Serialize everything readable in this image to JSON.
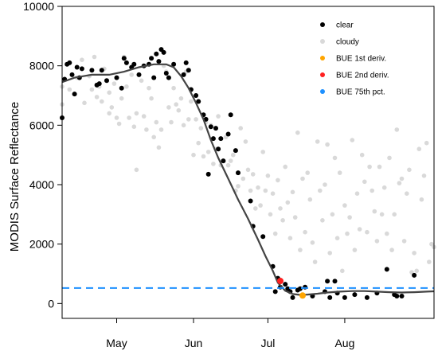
{
  "chart_data": {
    "type": "scatter",
    "ylabel": "MODIS Surface Reflectance",
    "xlabel": "",
    "xlim": [
      113,
      263
    ],
    "ylim": [
      -500,
      10000
    ],
    "yticks": [
      0,
      2000,
      4000,
      6000,
      8000,
      10000
    ],
    "xticks": [
      {
        "label": "May",
        "day": 135
      },
      {
        "label": "Jun",
        "day": 166
      },
      {
        "label": "Jul",
        "day": 196
      },
      {
        "label": "Aug",
        "day": 227
      }
    ],
    "legend": {
      "position": "top-right",
      "entries": [
        {
          "label": "clear",
          "color": "#000000"
        },
        {
          "label": "cloudy",
          "color": "#d9d9d9"
        },
        {
          "label": "BUE 1st deriv.",
          "color": "#ffa500"
        },
        {
          "label": "BUE 2nd deriv.",
          "color": "#ff2020"
        },
        {
          "label": "BUE 75th pct.",
          "color": "#1e90ff"
        }
      ]
    },
    "series": [
      {
        "name": "clear",
        "color": "#000000",
        "points": [
          [
            113,
            6250
          ],
          [
            114,
            7550
          ],
          [
            115,
            8050
          ],
          [
            116,
            8100
          ],
          [
            117,
            7700
          ],
          [
            118,
            7050
          ],
          [
            119,
            7950
          ],
          [
            120,
            7600
          ],
          [
            121,
            7900
          ],
          [
            125,
            7850
          ],
          [
            127,
            7350
          ],
          [
            128,
            7400
          ],
          [
            129,
            7850
          ],
          [
            131,
            7500
          ],
          [
            135,
            7600
          ],
          [
            137,
            7250
          ],
          [
            138,
            8250
          ],
          [
            139,
            8100
          ],
          [
            141,
            7950
          ],
          [
            142,
            8050
          ],
          [
            144,
            7700
          ],
          [
            146,
            8000
          ],
          [
            148,
            8050
          ],
          [
            149,
            8250
          ],
          [
            150,
            7600
          ],
          [
            151,
            8400
          ],
          [
            152,
            8150
          ],
          [
            153,
            8550
          ],
          [
            154,
            8450
          ],
          [
            155,
            7750
          ],
          [
            156,
            7600
          ],
          [
            158,
            8050
          ],
          [
            162,
            7700
          ],
          [
            163,
            8100
          ],
          [
            164,
            7850
          ],
          [
            165,
            7200
          ],
          [
            167,
            7000
          ],
          [
            168,
            6800
          ],
          [
            170,
            6350
          ],
          [
            171,
            6200
          ],
          [
            172,
            4350
          ],
          [
            173,
            5950
          ],
          [
            174,
            5550
          ],
          [
            175,
            5900
          ],
          [
            176,
            5200
          ],
          [
            177,
            5550
          ],
          [
            178,
            4800
          ],
          [
            180,
            5700
          ],
          [
            181,
            6350
          ],
          [
            183,
            5150
          ],
          [
            184,
            4400
          ],
          [
            189,
            3450
          ],
          [
            190,
            2600
          ],
          [
            194,
            2250
          ],
          [
            198,
            1250
          ],
          [
            199,
            400
          ],
          [
            200,
            850
          ],
          [
            201,
            550
          ],
          [
            203,
            650
          ],
          [
            204,
            500
          ],
          [
            205,
            400
          ],
          [
            206,
            200
          ],
          [
            208,
            450
          ],
          [
            209,
            500
          ],
          [
            211,
            550
          ],
          [
            214,
            250
          ],
          [
            219,
            400
          ],
          [
            220,
            750
          ],
          [
            221,
            200
          ],
          [
            223,
            750
          ],
          [
            224,
            350
          ],
          [
            227,
            200
          ],
          [
            231,
            300
          ],
          [
            236,
            200
          ],
          [
            240,
            350
          ],
          [
            244,
            1150
          ],
          [
            247,
            300
          ],
          [
            248,
            250
          ],
          [
            250,
            250
          ],
          [
            255,
            950
          ]
        ]
      },
      {
        "name": "cloudy",
        "color": "#d9d9d9",
        "points": [
          [
            113,
            7300
          ],
          [
            113,
            6700
          ],
          [
            116,
            7200
          ],
          [
            119,
            7600
          ],
          [
            121,
            8200
          ],
          [
            122,
            6750
          ],
          [
            124,
            7650
          ],
          [
            125,
            7200
          ],
          [
            126,
            8300
          ],
          [
            127,
            6950
          ],
          [
            128,
            7300
          ],
          [
            129,
            6800
          ],
          [
            130,
            7900
          ],
          [
            132,
            6400
          ],
          [
            132,
            7100
          ],
          [
            133,
            6600
          ],
          [
            134,
            7400
          ],
          [
            135,
            6250
          ],
          [
            136,
            6050
          ],
          [
            137,
            6900
          ],
          [
            138,
            8300
          ],
          [
            139,
            7300
          ],
          [
            140,
            6250
          ],
          [
            141,
            7700
          ],
          [
            142,
            5950
          ],
          [
            143,
            6400
          ],
          [
            143,
            4500
          ],
          [
            145,
            7500
          ],
          [
            146,
            6300
          ],
          [
            147,
            5850
          ],
          [
            148,
            7250
          ],
          [
            149,
            6900
          ],
          [
            150,
            5600
          ],
          [
            151,
            6100
          ],
          [
            152,
            5250
          ],
          [
            153,
            5850
          ],
          [
            154,
            8000
          ],
          [
            155,
            7800
          ],
          [
            156,
            6600
          ],
          [
            157,
            6100
          ],
          [
            158,
            7250
          ],
          [
            159,
            6700
          ],
          [
            160,
            6500
          ],
          [
            161,
            6900
          ],
          [
            162,
            6000
          ],
          [
            163,
            7800
          ],
          [
            164,
            6200
          ],
          [
            165,
            6800
          ],
          [
            166,
            5000
          ],
          [
            167,
            6200
          ],
          [
            168,
            5400
          ],
          [
            169,
            5900
          ],
          [
            170,
            4950
          ],
          [
            171,
            6100
          ],
          [
            172,
            5100
          ],
          [
            173,
            6000
          ],
          [
            174,
            4700
          ],
          [
            175,
            5200
          ],
          [
            176,
            6300
          ],
          [
            177,
            4650
          ],
          [
            178,
            4800
          ],
          [
            179,
            5600
          ],
          [
            180,
            4650
          ],
          [
            181,
            4800
          ],
          [
            182,
            5000
          ],
          [
            183,
            3800
          ],
          [
            184,
            3950
          ],
          [
            185,
            5900
          ],
          [
            186,
            4200
          ],
          [
            187,
            5450
          ],
          [
            188,
            4500
          ],
          [
            189,
            3800
          ],
          [
            190,
            4350
          ],
          [
            191,
            3200
          ],
          [
            192,
            3900
          ],
          [
            193,
            3300
          ],
          [
            194,
            5100
          ],
          [
            195,
            3800
          ],
          [
            196,
            4300
          ],
          [
            197,
            3000
          ],
          [
            198,
            3700
          ],
          [
            199,
            2350
          ],
          [
            200,
            4150
          ],
          [
            201,
            3200
          ],
          [
            202,
            2800
          ],
          [
            203,
            4600
          ],
          [
            204,
            3400
          ],
          [
            205,
            2200
          ],
          [
            206,
            3750
          ],
          [
            207,
            2900
          ],
          [
            208,
            5750
          ],
          [
            209,
            1800
          ],
          [
            210,
            4200
          ],
          [
            211,
            2400
          ],
          [
            212,
            4400
          ],
          [
            213,
            3500
          ],
          [
            214,
            2050
          ],
          [
            215,
            1400
          ],
          [
            216,
            5450
          ],
          [
            217,
            3800
          ],
          [
            218,
            2800
          ],
          [
            219,
            4000
          ],
          [
            220,
            5350
          ],
          [
            221,
            1700
          ],
          [
            222,
            3000
          ],
          [
            223,
            4900
          ],
          [
            224,
            2200
          ],
          [
            225,
            4400
          ],
          [
            226,
            1100
          ],
          [
            227,
            3300
          ],
          [
            228,
            2350
          ],
          [
            229,
            2900
          ],
          [
            230,
            5500
          ],
          [
            231,
            1800
          ],
          [
            232,
            3700
          ],
          [
            233,
            2500
          ],
          [
            234,
            5000
          ],
          [
            235,
            4100
          ],
          [
            236,
            2400
          ],
          [
            237,
            4600
          ],
          [
            238,
            3800
          ],
          [
            239,
            3100
          ],
          [
            240,
            2100
          ],
          [
            241,
            4600
          ],
          [
            242,
            3000
          ],
          [
            243,
            3900
          ],
          [
            244,
            2350
          ],
          [
            245,
            4900
          ],
          [
            246,
            1800
          ],
          [
            247,
            3000
          ],
          [
            248,
            5850
          ],
          [
            249,
            4050
          ],
          [
            250,
            4200
          ],
          [
            251,
            2100
          ],
          [
            252,
            3700
          ],
          [
            253,
            4500
          ],
          [
            254,
            1050
          ],
          [
            255,
            1700
          ],
          [
            256,
            1100
          ],
          [
            257,
            5200
          ],
          [
            258,
            3500
          ],
          [
            259,
            4300
          ],
          [
            260,
            5400
          ],
          [
            261,
            1400
          ],
          [
            262,
            2000
          ],
          [
            263,
            1900
          ]
        ]
      }
    ],
    "fitted_curve": {
      "color": "#444444",
      "points": [
        [
          113,
          7450
        ],
        [
          118,
          7600
        ],
        [
          125,
          7700
        ],
        [
          132,
          7700
        ],
        [
          138,
          7800
        ],
        [
          144,
          7950
        ],
        [
          150,
          8050
        ],
        [
          155,
          8050
        ],
        [
          158,
          7950
        ],
        [
          161,
          7650
        ],
        [
          164,
          7250
        ],
        [
          167,
          6750
        ],
        [
          170,
          6200
        ],
        [
          173,
          5500
        ],
        [
          176,
          4900
        ],
        [
          180,
          4200
        ],
        [
          184,
          3500
        ],
        [
          188,
          2850
        ],
        [
          192,
          2150
        ],
        [
          195,
          1600
        ],
        [
          198,
          1100
        ],
        [
          200,
          700
        ],
        [
          203,
          430
        ],
        [
          206,
          320
        ],
        [
          209,
          290
        ],
        [
          212,
          300
        ],
        [
          216,
          330
        ],
        [
          220,
          370
        ],
        [
          225,
          400
        ],
        [
          230,
          420
        ],
        [
          235,
          420
        ],
        [
          240,
          400
        ],
        [
          245,
          380
        ],
        [
          250,
          370
        ],
        [
          255,
          380
        ],
        [
          260,
          400
        ],
        [
          263,
          410
        ]
      ]
    },
    "markers": [
      {
        "name": "BUE 1st deriv.",
        "color": "#ffa500",
        "x": 210,
        "y": 270
      },
      {
        "name": "BUE 2nd deriv.",
        "color": "#ff2020",
        "x": 201,
        "y": 760
      }
    ],
    "hline": {
      "name": "BUE 75th pct.",
      "color": "#1e90ff",
      "y": 520,
      "style": "dashed"
    }
  }
}
